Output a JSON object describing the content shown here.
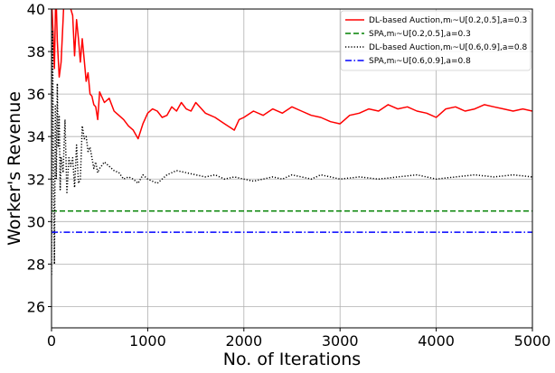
{
  "chart_data": {
    "type": "line",
    "title": "",
    "xlabel": "No. of Iterations",
    "ylabel": "Worker's Revenue",
    "xlim": [
      0,
      5000
    ],
    "ylim": [
      25,
      40
    ],
    "xticks": [
      0,
      1000,
      2000,
      3000,
      4000,
      5000
    ],
    "yticks": [
      26,
      28,
      30,
      32,
      34,
      36,
      38,
      40
    ],
    "grid": true,
    "legend_position": "top-right",
    "series": [
      {
        "name": "DL-based Auction,mᵢ~U[0.2,0.5],a=0.3",
        "color": "#ff0000",
        "style": "solid",
        "x": [
          0,
          15,
          30,
          45,
          60,
          80,
          100,
          120,
          140,
          160,
          180,
          200,
          220,
          240,
          260,
          280,
          300,
          320,
          340,
          360,
          380,
          400,
          420,
          440,
          460,
          480,
          500,
          550,
          600,
          650,
          700,
          750,
          800,
          850,
          900,
          950,
          1000,
          1050,
          1100,
          1150,
          1200,
          1250,
          1300,
          1350,
          1400,
          1450,
          1500,
          1600,
          1700,
          1800,
          1900,
          1950,
          2000,
          2100,
          2200,
          2300,
          2400,
          2500,
          2600,
          2700,
          2800,
          2900,
          3000,
          3100,
          3200,
          3300,
          3400,
          3500,
          3600,
          3700,
          3800,
          3900,
          4000,
          4100,
          4200,
          4300,
          4400,
          4500,
          4600,
          4700,
          4800,
          4900,
          5000
        ],
        "values": [
          40.5,
          39.0,
          37.2,
          41.0,
          38.5,
          36.8,
          37.5,
          39.5,
          41.5,
          40.5,
          40.2,
          40.0,
          39.7,
          37.8,
          39.5,
          38.6,
          37.5,
          38.6,
          37.6,
          36.6,
          37.0,
          36.0,
          35.9,
          35.5,
          35.4,
          34.8,
          36.1,
          35.6,
          35.8,
          35.2,
          35.0,
          34.8,
          34.5,
          34.3,
          33.9,
          34.6,
          35.1,
          35.3,
          35.2,
          34.9,
          35.0,
          35.4,
          35.2,
          35.6,
          35.3,
          35.2,
          35.6,
          35.1,
          34.9,
          34.6,
          34.3,
          34.8,
          34.9,
          35.2,
          35.0,
          35.3,
          35.1,
          35.4,
          35.2,
          35.0,
          34.9,
          34.7,
          34.6,
          35.0,
          35.1,
          35.3,
          35.2,
          35.5,
          35.3,
          35.4,
          35.2,
          35.1,
          34.9,
          35.3,
          35.4,
          35.2,
          35.3,
          35.5,
          35.4,
          35.3,
          35.2,
          35.3,
          35.2
        ]
      },
      {
        "name": "SPA,mᵢ~U[0.2,0.5],a=0.3",
        "color": "#008000",
        "style": "dashed",
        "x": [
          0,
          5000
        ],
        "values": [
          30.5,
          30.5
        ]
      },
      {
        "name": "DL-based Auction,mᵢ~U[0.6,0.9],a=0.8",
        "color": "#000000",
        "style": "dotted",
        "x": [
          0,
          10,
          20,
          30,
          40,
          50,
          60,
          70,
          80,
          90,
          100,
          120,
          140,
          160,
          180,
          200,
          220,
          240,
          260,
          280,
          300,
          320,
          340,
          360,
          380,
          400,
          420,
          440,
          460,
          480,
          500,
          550,
          600,
          650,
          700,
          750,
          800,
          850,
          900,
          950,
          1000,
          1100,
          1200,
          1300,
          1400,
          1500,
          1600,
          1700,
          1800,
          1900,
          2000,
          2100,
          2200,
          2300,
          2400,
          2500,
          2600,
          2700,
          2800,
          2900,
          3000,
          3200,
          3400,
          3600,
          3800,
          4000,
          4200,
          4400,
          4600,
          4800,
          5000
        ],
        "values": [
          27.5,
          39.0,
          33.0,
          28.0,
          35.5,
          32.0,
          36.5,
          33.5,
          35.0,
          31.5,
          33.0,
          32.3,
          34.8,
          31.3,
          33.0,
          32.6,
          33.0,
          31.6,
          33.6,
          31.8,
          32.0,
          34.5,
          33.9,
          34.0,
          33.3,
          33.5,
          33.0,
          32.5,
          32.8,
          32.3,
          32.5,
          32.8,
          32.6,
          32.4,
          32.3,
          32.0,
          32.1,
          32.0,
          31.8,
          32.2,
          32.0,
          31.8,
          32.2,
          32.4,
          32.3,
          32.2,
          32.1,
          32.2,
          32.0,
          32.1,
          32.0,
          31.9,
          32.0,
          32.1,
          32.0,
          32.2,
          32.1,
          32.0,
          32.2,
          32.1,
          32.0,
          32.1,
          32.0,
          32.1,
          32.2,
          32.0,
          32.1,
          32.2,
          32.1,
          32.2,
          32.1
        ]
      },
      {
        "name": "SPA,mᵢ~U[0.6,0.9],a=0.8",
        "color": "#0000ff",
        "style": "dashdot",
        "x": [
          0,
          5000
        ],
        "values": [
          29.5,
          29.5
        ]
      }
    ]
  }
}
